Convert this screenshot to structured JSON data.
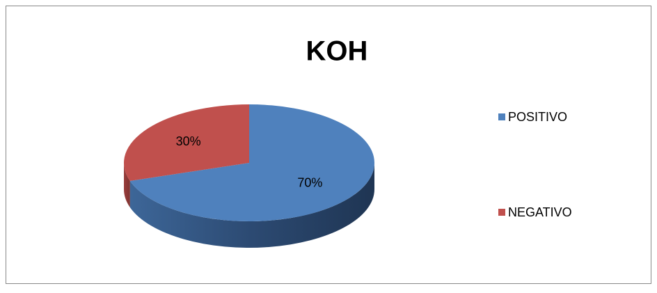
{
  "chart_data": {
    "type": "pie",
    "title": "KOH",
    "categories": [
      "POSITIVO",
      "NEGATIVO"
    ],
    "values": [
      70,
      30
    ],
    "value_labels": [
      "70%",
      "30%"
    ],
    "colors": [
      "#4f81bd",
      "#c0504d"
    ],
    "legend": "right"
  }
}
